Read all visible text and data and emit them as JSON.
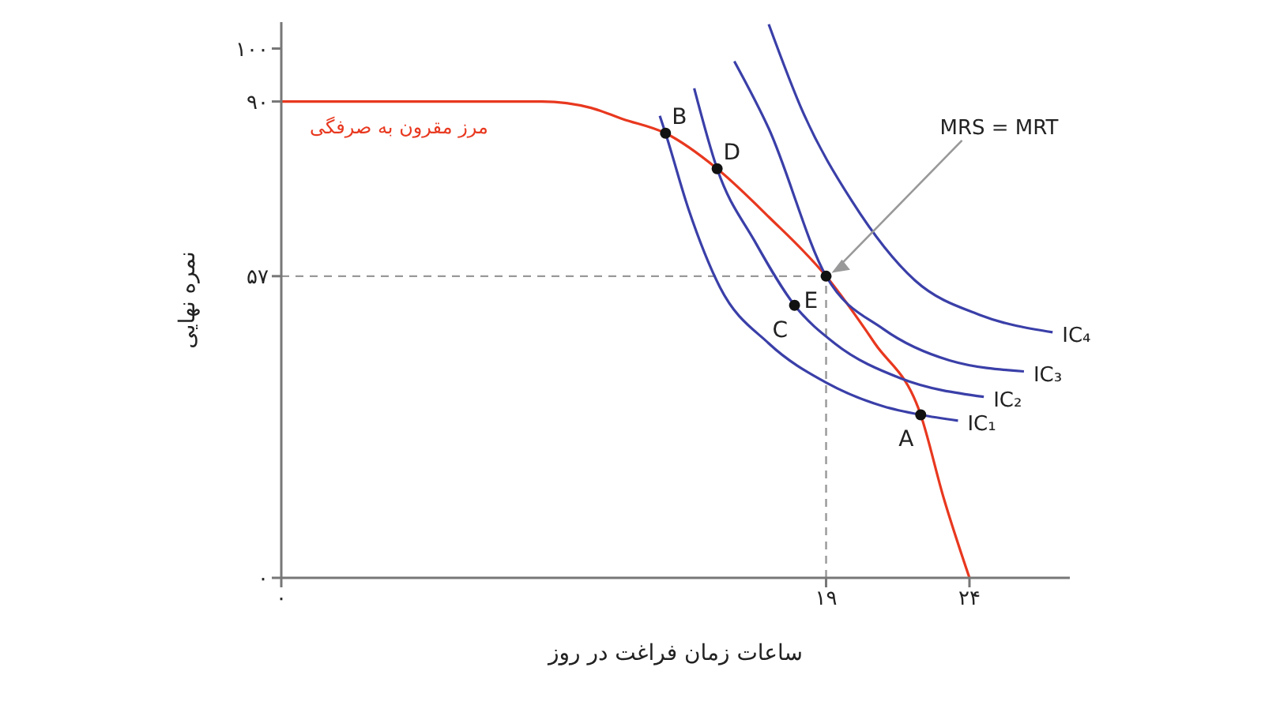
{
  "chart_data": {
    "type": "line",
    "xlabel": "ساعات زمان فراغت در روز",
    "ylabel": "نمره نهایی",
    "xlim": [
      0,
      27.5
    ],
    "ylim": [
      0,
      105
    ],
    "xticks": [
      {
        "value": 0,
        "label": "۰"
      },
      {
        "value": 19,
        "label": "۱۹"
      },
      {
        "value": 24,
        "label": "۲۴"
      }
    ],
    "yticks": [
      {
        "value": 0,
        "label": "۰"
      },
      {
        "value": 57,
        "label": "۵۷"
      },
      {
        "value": 90,
        "label": "۹۰"
      },
      {
        "value": 100,
        "label": "۱۰۰"
      }
    ],
    "grid": false,
    "legend": false,
    "marker": "none",
    "line_style": "solid",
    "series": [
      {
        "name": "مرز مقرون به صرفگی",
        "color": "#e8381f",
        "x": [
          0,
          9.1,
          10.8,
          11.9,
          13.4,
          15.2,
          17.0,
          19.0,
          20.7,
          22.3,
          23.1,
          24.0
        ],
        "values": [
          90,
          90,
          88.8,
          86.7,
          84,
          77.3,
          68.2,
          57,
          44.3,
          30.8,
          15.1,
          0
        ]
      },
      {
        "name": "IC₁",
        "color": "#3a3fa8",
        "x": [
          13.2,
          13.4,
          14.2,
          15.3,
          17.0,
          19.0,
          21.0,
          22.3,
          23.6
        ],
        "values": [
          87.3,
          84,
          69.7,
          54.9,
          44.3,
          36.9,
          32.4,
          30.8,
          29.7
        ]
      },
      {
        "name": "IC₂",
        "color": "#3a3fa8",
        "x": [
          14.4,
          15.2,
          16.5,
          17.9,
          19.3,
          21.6,
          24.5
        ],
        "values": [
          92.5,
          77.3,
          63.7,
          51.5,
          44.3,
          37.7,
          34.2
        ]
      },
      {
        "name": "IC₃",
        "color": "#3a3fa8",
        "x": [
          15.8,
          17.0,
          19.0,
          21.0,
          23.3,
          25.9
        ],
        "values": [
          97.6,
          84.9,
          57,
          47.0,
          41.1,
          39.0
        ]
      },
      {
        "name": "IC₄",
        "color": "#3a3fa8",
        "x": [
          17.0,
          18.2,
          19.9,
          22.1,
          24.4,
          26.9
        ],
        "values": [
          104.6,
          87.9,
          71.2,
          56.2,
          49.6,
          46.4
        ]
      },
      {
        "type": "scatter",
        "color": "#111111",
        "marker": "circle",
        "x": [
          13.4,
          15.2,
          19.0,
          17.9,
          22.3
        ],
        "values": [
          84,
          77.3,
          57,
          51.5,
          30.8
        ]
      }
    ],
    "ref_lines": [
      {
        "axis": "x",
        "value": 19,
        "color": "#999999",
        "line_style": "dashed"
      },
      {
        "axis": "y",
        "value": 57,
        "color": "#999999",
        "line_style": "dashed"
      }
    ],
    "annotations": [
      {
        "text": "B",
        "x": 13.4,
        "y": 84
      },
      {
        "text": "D",
        "x": 15.2,
        "y": 77.3
      },
      {
        "text": "E",
        "x": 19.0,
        "y": 57
      },
      {
        "text": "C",
        "x": 17.9,
        "y": 51.5
      },
      {
        "text": "A",
        "x": 22.3,
        "y": 30.8
      },
      {
        "text": "MRS = MRT",
        "x": 19.0,
        "y": 57
      }
    ]
  }
}
